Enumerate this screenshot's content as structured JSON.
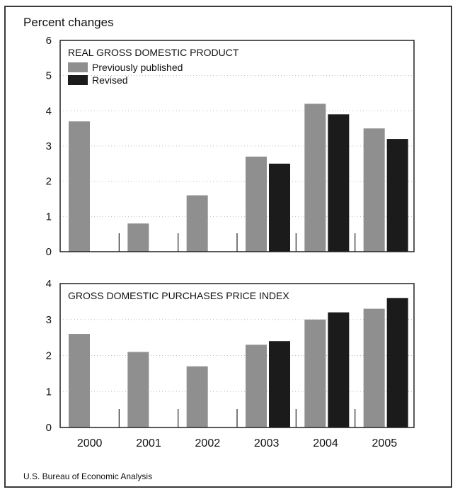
{
  "y_axis_label": "Percent changes",
  "source": "U.S. Bureau of Economic Analysis",
  "colors": {
    "previously_published": "#8f8f8f",
    "revised": "#1b1b1b"
  },
  "chart_data": [
    {
      "type": "bar",
      "title": "REAL GROSS DOMESTIC PRODUCT",
      "ylabel": "Percent changes",
      "ylim": [
        0,
        6
      ],
      "yticks": [
        "0",
        "1",
        "2",
        "3",
        "4",
        "5",
        "6"
      ],
      "grid": true,
      "legend_placement": "top-left",
      "categories": [
        "2000",
        "2001",
        "2002",
        "2003",
        "2004",
        "2005"
      ],
      "series": [
        {
          "name": "Previously published",
          "values": [
            3.7,
            0.8,
            1.6,
            2.7,
            4.2,
            3.5
          ]
        },
        {
          "name": "Revised",
          "values": [
            null,
            null,
            null,
            2.5,
            3.9,
            3.2
          ]
        }
      ]
    },
    {
      "type": "bar",
      "title": "GROSS DOMESTIC PURCHASES PRICE INDEX",
      "ylim": [
        0,
        4
      ],
      "yticks": [
        "0",
        "1",
        "2",
        "3",
        "4"
      ],
      "grid": true,
      "categories": [
        "2000",
        "2001",
        "2002",
        "2003",
        "2004",
        "2005"
      ],
      "series": [
        {
          "name": "Previously published",
          "values": [
            2.6,
            2.1,
            1.7,
            2.3,
            3.0,
            3.3
          ]
        },
        {
          "name": "Revised",
          "values": [
            null,
            null,
            null,
            2.4,
            3.2,
            3.6
          ]
        }
      ]
    }
  ]
}
